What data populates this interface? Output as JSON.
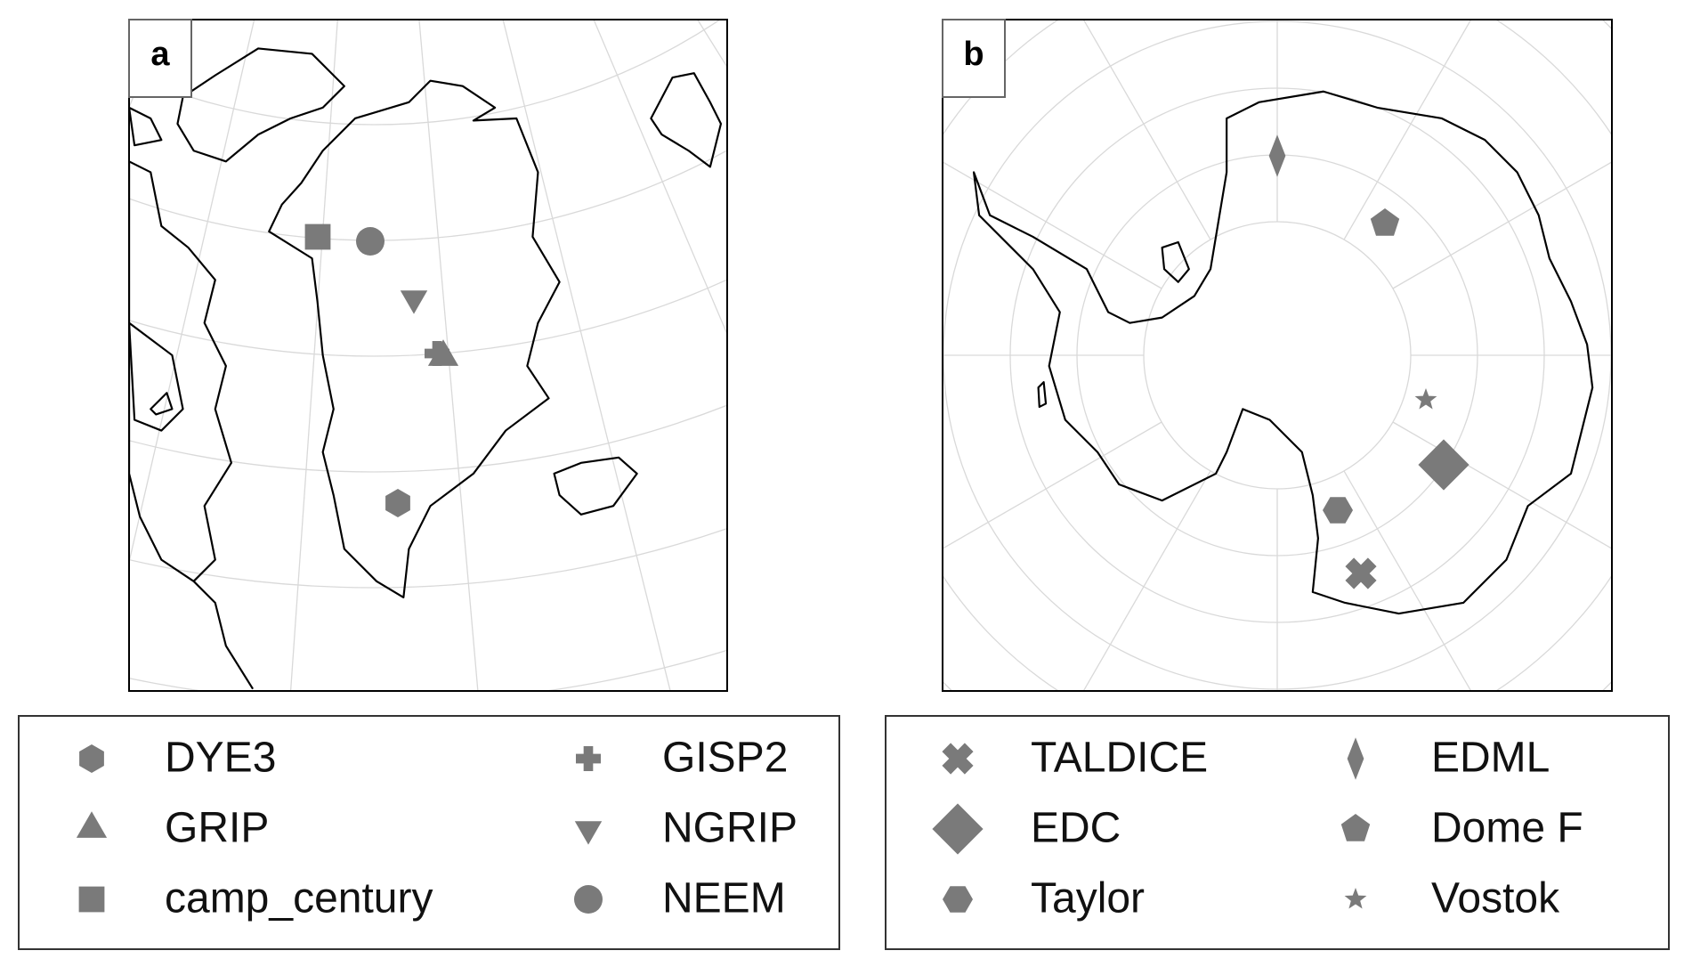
{
  "panels": [
    {
      "label": "a",
      "legend": [
        "DYE3",
        "GRIP",
        "camp_century",
        "GISP2",
        "NGRIP",
        "NEEM"
      ]
    },
    {
      "label": "b",
      "legend": [
        "TALDICE",
        "EDC",
        "Taylor",
        "EDML",
        "Dome F",
        "Vostok"
      ]
    }
  ]
}
